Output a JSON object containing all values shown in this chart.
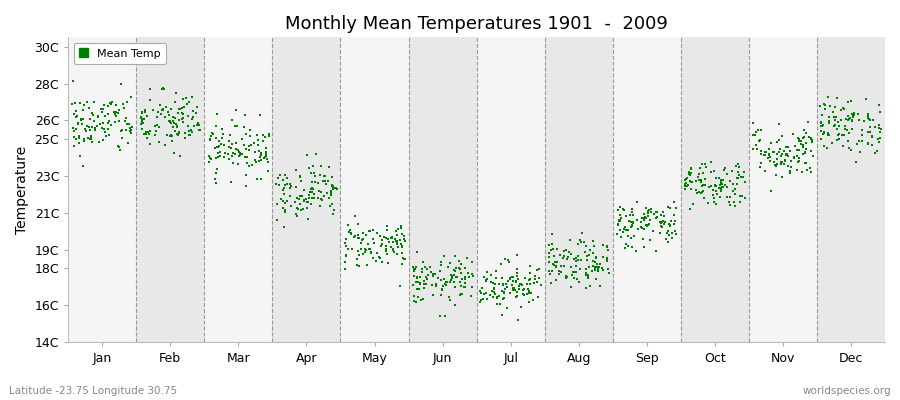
{
  "title": "Monthly Mean Temperatures 1901  -  2009",
  "ylabel": "Temperature",
  "xlabel_bottom_left": "Latitude -23.75 Longitude 30.75",
  "xlabel_bottom_right": "worldspecies.org",
  "legend_label": "Mean Temp",
  "marker_color": "#008000",
  "background_color": "#ffffff",
  "band_color_odd": "#e8e8e8",
  "band_color_even": "#f5f5f5",
  "ylim": [
    14,
    30.5
  ],
  "ytick_labels": [
    "14C",
    "16C",
    "18C",
    "19C",
    "21C",
    "23C",
    "25C",
    "26C",
    "28C",
    "30C"
  ],
  "ytick_values": [
    14,
    16,
    18,
    19,
    21,
    23,
    25,
    26,
    28,
    30
  ],
  "months": [
    "Jan",
    "Feb",
    "Mar",
    "Apr",
    "May",
    "Jun",
    "Jul",
    "Aug",
    "Sep",
    "Oct",
    "Nov",
    "Dec"
  ],
  "mean_temps": [
    25.8,
    25.9,
    24.5,
    22.2,
    19.3,
    17.3,
    17.1,
    18.2,
    20.4,
    22.6,
    24.3,
    25.7
  ],
  "std_devs": [
    0.85,
    0.85,
    0.75,
    0.75,
    0.65,
    0.65,
    0.65,
    0.65,
    0.65,
    0.65,
    0.75,
    0.75
  ],
  "n_years": 109,
  "seed": 42,
  "figsize": [
    9.0,
    4.0
  ],
  "dpi": 100
}
